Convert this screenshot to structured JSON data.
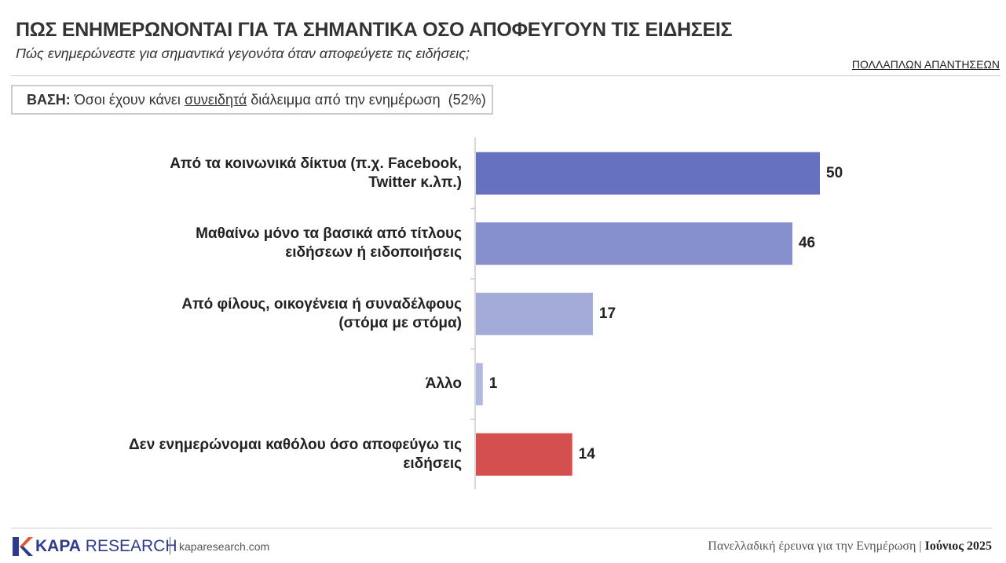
{
  "header": {
    "title": "ΠΩΣ ΕΝΗΜΕΡΩΝΟΝΤΑΙ ΓΙΑ ΤΑ ΣΗΜΑΝΤΙΚΑ ΟΣΟ ΑΠΟΦΕΥΓΟΥΝ ΤΙΣ ΕΙΔΗΣΕΙΣ",
    "subtitle": "Πώς ενημερώνεστε για σημαντικά γεγονότα όταν αποφεύγετε τις ειδήσεις;",
    "note": "ΠΟΛΛΑΠΛΩΝ ΑΠΑΝΤΗΣΕΩΝ"
  },
  "base": {
    "label": "ΒΑΣΗ:",
    "text_before": "Όσοι έχουν κάνει",
    "emphasis": "συνειδητά",
    "text_after": "διάλειμμα από την ενημέρωση",
    "share": "(52%)"
  },
  "chart_data": {
    "type": "bar",
    "orientation": "horizontal",
    "categories": [
      "Από τα κοινωνικά δίκτυα (π.χ. Facebook,\nTwitter κ.λπ.)",
      "Μαθαίνω μόνο τα βασικά από τίτλους\nειδήσεων ή ειδοποιήσεις",
      "Από φίλους, οικογένεια ή συναδέλφους\n(στόμα με στόμα)",
      "Άλλο",
      "Δεν ενημερώνομαι καθόλου όσο αποφεύγω τις\nειδήσεις"
    ],
    "values": [
      50,
      46,
      17,
      1,
      14
    ],
    "colors": [
      "#6672c0",
      "#8590cc",
      "#a3acd8",
      "#b2b9df",
      "#d4504e"
    ],
    "xlim": [
      0,
      50
    ]
  },
  "footer": {
    "brand_bold": "KAPA",
    "brand": "RESEARCH",
    "site": "kaparesearch.com",
    "survey": "Πανελλαδική έρευνα για την Ενημέρωση",
    "date": "Ιούνιος 2025"
  }
}
